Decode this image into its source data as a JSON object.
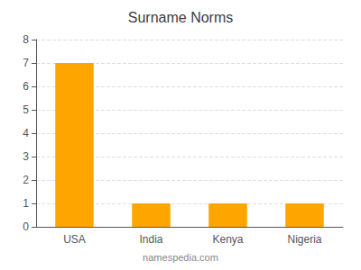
{
  "chart_data": {
    "type": "bar",
    "title": "Surname Norms",
    "categories": [
      "USA",
      "India",
      "Kenya",
      "Nigeria"
    ],
    "values": [
      7,
      1,
      1,
      1
    ],
    "color": "#FFA500",
    "ylim": [
      0,
      8
    ],
    "yticks": [
      0,
      1,
      2,
      3,
      4,
      5,
      6,
      7,
      8
    ],
    "grid": true,
    "footer": "namespedia.com"
  }
}
